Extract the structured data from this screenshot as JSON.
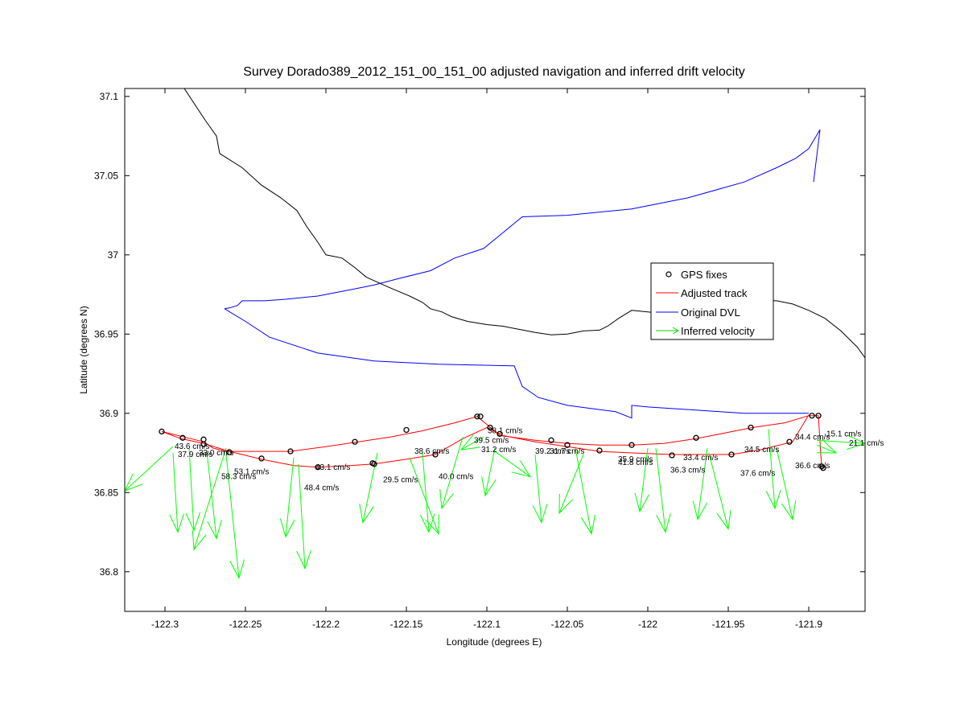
{
  "chart_data": {
    "type": "line",
    "title": "Survey Dorado389_2012_151_00_151_00 adjusted navigation and inferred drift velocity",
    "xlabel": "Longitude (degrees E)",
    "ylabel": "Latitude (degrees N)",
    "xlim": [
      -122.325,
      -121.865
    ],
    "ylim": [
      36.775,
      37.105
    ],
    "xticks": [
      -122.3,
      -122.25,
      -122.2,
      -122.15,
      -122.1,
      -122.05,
      -122.0,
      -121.95,
      -121.9
    ],
    "xtick_labels": [
      "-122.3",
      "-122.25",
      "-122.2",
      "-122.15",
      "-122.1",
      "-122.05",
      "-122",
      "-121.95",
      "-121.9"
    ],
    "yticks": [
      36.8,
      36.85,
      36.9,
      36.95,
      37.0,
      37.05,
      37.1
    ],
    "ytick_labels": [
      "36.8",
      "36.85",
      "36.9",
      "36.95",
      "37",
      "37.05",
      "37.1"
    ],
    "legend": {
      "position": "right",
      "entries": [
        "GPS fixes",
        "Adjusted track",
        "Original DVL",
        "Inferred velocity"
      ]
    },
    "colors": {
      "coastline": "#000000",
      "gps": "#000000",
      "adjusted": "#ff0000",
      "dvl": "#0000ff",
      "velocity": "#00ff00"
    },
    "coastline": [
      [
        -122.288,
        37.105
      ],
      [
        -122.275,
        37.085
      ],
      [
        -122.268,
        37.075
      ],
      [
        -122.266,
        37.064
      ],
      [
        -122.252,
        37.055
      ],
      [
        -122.24,
        37.044
      ],
      [
        -122.228,
        37.036
      ],
      [
        -122.218,
        37.028
      ],
      [
        -122.212,
        37.018
      ],
      [
        -122.205,
        37.008
      ],
      [
        -122.2,
        37.0
      ],
      [
        -122.19,
        36.998
      ],
      [
        -122.182,
        36.992
      ],
      [
        -122.175,
        36.986
      ],
      [
        -122.162,
        36.98
      ],
      [
        -122.148,
        36.974
      ],
      [
        -122.14,
        36.97
      ],
      [
        -122.135,
        36.966
      ],
      [
        -122.128,
        36.964
      ],
      [
        -122.122,
        36.961
      ],
      [
        -122.112,
        36.958
      ],
      [
        -122.1,
        36.956
      ],
      [
        -122.09,
        36.955
      ],
      [
        -122.08,
        36.953
      ],
      [
        -122.07,
        36.951
      ],
      [
        -122.06,
        36.9495
      ],
      [
        -122.05,
        36.95
      ],
      [
        -122.04,
        36.952
      ],
      [
        -122.03,
        36.9525
      ],
      [
        -122.025,
        36.955
      ],
      [
        -122.018,
        36.96
      ],
      [
        -122.01,
        36.965
      ],
      [
        -122.0,
        36.964
      ],
      [
        -121.99,
        36.963
      ],
      [
        -121.98,
        36.964
      ],
      [
        -121.97,
        36.965
      ],
      [
        -121.96,
        36.966
      ],
      [
        -121.95,
        36.967
      ],
      [
        -121.94,
        36.969
      ],
      [
        -121.93,
        36.971
      ],
      [
        -121.92,
        36.971
      ],
      [
        -121.91,
        36.969
      ],
      [
        -121.9,
        36.965
      ],
      [
        -121.89,
        36.96
      ],
      [
        -121.88,
        36.952
      ],
      [
        -121.87,
        36.942
      ],
      [
        -121.865,
        36.935
      ]
    ],
    "original_dvl": [
      [
        -122.263,
        36.966
      ],
      [
        -122.26,
        36.9665
      ],
      [
        -122.255,
        36.968
      ],
      [
        -122.252,
        36.971
      ],
      [
        -122.238,
        36.971
      ],
      [
        -122.225,
        36.972
      ],
      [
        -122.205,
        36.974
      ],
      [
        -122.185,
        36.978
      ],
      [
        -122.17,
        36.981
      ],
      [
        -122.155,
        36.985
      ],
      [
        -122.135,
        36.99
      ],
      [
        -122.12,
        36.998
      ],
      [
        -122.102,
        37.004
      ],
      [
        -122.09,
        37.014
      ],
      [
        -122.078,
        37.024
      ],
      [
        -122.05,
        37.025
      ],
      [
        -122.01,
        37.029
      ],
      [
        -121.975,
        37.036
      ],
      [
        -121.94,
        37.046
      ],
      [
        -121.92,
        37.055
      ],
      [
        -121.908,
        37.061
      ],
      [
        -121.9,
        37.067
      ],
      [
        -121.893,
        37.079
      ],
      [
        -121.897,
        37.046
      ]
    ],
    "original_dvl_return": [
      [
        -122.263,
        36.966
      ],
      [
        -122.25,
        36.958
      ],
      [
        -122.235,
        36.948
      ],
      [
        -122.205,
        36.938
      ],
      [
        -122.17,
        36.933
      ],
      [
        -122.13,
        36.931
      ],
      [
        -122.085,
        36.93
      ],
      [
        -122.083,
        36.93
      ],
      [
        -122.078,
        36.917
      ],
      [
        -122.068,
        36.91
      ],
      [
        -122.05,
        36.905
      ],
      [
        -122.02,
        36.901
      ],
      [
        -122.01,
        36.897
      ],
      [
        -122.01,
        36.905
      ],
      [
        -122.0,
        36.904
      ],
      [
        -121.97,
        36.902
      ],
      [
        -121.94,
        36.9
      ],
      [
        -121.9,
        36.9
      ]
    ],
    "adjusted_track": [
      [
        -122.302,
        36.8885
      ],
      [
        -122.288,
        36.885
      ],
      [
        -122.276,
        36.882
      ],
      [
        -122.27,
        36.878
      ],
      [
        -122.262,
        36.876
      ],
      [
        -122.248,
        36.876
      ],
      [
        -122.235,
        36.876
      ],
      [
        -122.222,
        36.876
      ],
      [
        -122.2,
        36.879
      ],
      [
        -122.18,
        36.882
      ],
      [
        -122.16,
        36.885
      ],
      [
        -122.14,
        36.889
      ],
      [
        -122.12,
        36.894
      ],
      [
        -122.106,
        36.898
      ],
      [
        -122.1,
        36.893
      ],
      [
        -122.092,
        36.886
      ],
      [
        -122.07,
        36.883
      ],
      [
        -122.05,
        36.881
      ],
      [
        -122.03,
        36.88
      ],
      [
        -122.01,
        36.88
      ],
      [
        -121.99,
        36.881
      ],
      [
        -121.97,
        36.884
      ],
      [
        -121.95,
        36.888
      ],
      [
        -121.935,
        36.891
      ],
      [
        -121.915,
        36.894
      ],
      [
        -121.9,
        36.8985
      ],
      [
        -121.894,
        36.8985
      ],
      [
        -121.892,
        36.866
      ]
    ],
    "adjusted_track_return": [
      [
        -122.302,
        36.8885
      ],
      [
        -122.29,
        36.884
      ],
      [
        -122.276,
        36.881
      ],
      [
        -122.26,
        36.876
      ],
      [
        -122.24,
        36.871
      ],
      [
        -122.22,
        36.867
      ],
      [
        -122.205,
        36.866
      ],
      [
        -122.185,
        36.867
      ],
      [
        -122.17,
        36.868
      ],
      [
        -122.15,
        36.871
      ],
      [
        -122.132,
        36.874
      ],
      [
        -122.115,
        36.884
      ],
      [
        -122.1,
        36.891
      ],
      [
        -122.09,
        36.886
      ],
      [
        -122.07,
        36.882
      ],
      [
        -122.05,
        36.879
      ],
      [
        -122.03,
        36.876
      ],
      [
        -122.01,
        36.875
      ],
      [
        -121.985,
        36.874
      ],
      [
        -121.965,
        36.874
      ],
      [
        -121.948,
        36.874
      ],
      [
        -121.93,
        36.877
      ],
      [
        -121.91,
        36.882
      ],
      [
        -121.9,
        36.899
      ]
    ],
    "gps_fixes": [
      [
        -122.302,
        36.8885
      ],
      [
        -122.289,
        36.8845
      ],
      [
        -122.276,
        36.8835
      ],
      [
        -122.276,
        36.8805
      ],
      [
        -122.26,
        36.8755
      ],
      [
        -122.24,
        36.8715
      ],
      [
        -122.222,
        36.876
      ],
      [
        -122.205,
        36.866
      ],
      [
        -122.182,
        36.882
      ],
      [
        -122.17,
        36.868
      ],
      [
        -122.171,
        36.8685
      ],
      [
        -122.15,
        36.8895
      ],
      [
        -122.132,
        36.874
      ],
      [
        -122.106,
        36.898
      ],
      [
        -122.104,
        36.898
      ],
      [
        -122.098,
        36.891
      ],
      [
        -122.092,
        36.887
      ],
      [
        -122.06,
        36.883
      ],
      [
        -122.05,
        36.88
      ],
      [
        -122.03,
        36.8765
      ],
      [
        -122.01,
        36.88
      ],
      [
        -121.985,
        36.8735
      ],
      [
        -121.97,
        36.8845
      ],
      [
        -121.948,
        36.874
      ],
      [
        -121.936,
        36.891
      ],
      [
        -121.912,
        36.882
      ],
      [
        -121.898,
        36.8985
      ],
      [
        -121.894,
        36.8985
      ],
      [
        -121.892,
        36.8665
      ],
      [
        -121.891,
        36.8655
      ]
    ],
    "inferred_velocity": [
      {
        "lon": -122.295,
        "lat": 36.879,
        "dlon": -0.03,
        "dlat": -0.028,
        "label": ""
      },
      {
        "lon": -122.295,
        "lat": 36.875,
        "dlon": 0.003,
        "dlat": -0.05,
        "label": "37.9 cm/s"
      },
      {
        "lon": -122.285,
        "lat": 36.878,
        "dlon": 0.003,
        "dlat": -0.052,
        "label": "43.6 cm/s"
      },
      {
        "lon": -122.274,
        "lat": 36.876,
        "dlon": 0.006,
        "dlat": -0.055,
        "label": "33.0 cm/s"
      },
      {
        "lon": -122.262,
        "lat": 36.878,
        "dlon": -0.02,
        "dlat": -0.064,
        "label": "53.1 cm/s"
      },
      {
        "lon": -122.262,
        "lat": 36.874,
        "dlon": 0.008,
        "dlat": -0.078,
        "label": "58.3 cm/s"
      },
      {
        "lon": -122.22,
        "lat": 36.872,
        "dlon": -0.005,
        "dlat": -0.05,
        "label": "43.1 cm/s"
      },
      {
        "lon": -122.217,
        "lat": 36.868,
        "dlon": 0.004,
        "dlat": -0.066,
        "label": "48.4 cm/s"
      },
      {
        "lon": -122.168,
        "lat": 36.875,
        "dlon": -0.009,
        "dlat": -0.044,
        "label": "29.5 cm/s"
      },
      {
        "lon": -122.14,
        "lat": 36.875,
        "dlon": 0.004,
        "dlat": -0.05,
        "label": "38.6 cm/s"
      },
      {
        "lon": -122.148,
        "lat": 36.872,
        "dlon": 0.018,
        "dlat": -0.048,
        "label": "40.0 cm/s"
      },
      {
        "lon": -122.115,
        "lat": 36.885,
        "dlon": -0.013,
        "dlat": -0.045,
        "label": "39.5 cm/s"
      },
      {
        "lon": -122.102,
        "lat": 36.885,
        "dlon": -0.014,
        "dlat": -0.008,
        "label": "38.1 cm/s"
      },
      {
        "lon": -122.095,
        "lat": 36.878,
        "dlon": -0.006,
        "dlat": -0.03,
        "label": "31.2 cm/s"
      },
      {
        "lon": -122.095,
        "lat": 36.876,
        "dlon": 0.022,
        "dlat": -0.016,
        "label": "39.2 cm/s"
      },
      {
        "lon": -122.07,
        "lat": 36.874,
        "dlon": 0.004,
        "dlat": -0.043,
        "label": "31.7 cm/s"
      },
      {
        "lon": -122.04,
        "lat": 36.874,
        "dlon": -0.015,
        "dlat": -0.037,
        "label": "35.9 cm/s"
      },
      {
        "lon": -122.045,
        "lat": 36.878,
        "dlon": 0.01,
        "dlat": -0.054,
        "label": "41.8 cm/s"
      },
      {
        "lon": -122.0,
        "lat": 36.878,
        "dlon": -0.005,
        "dlat": -0.04,
        "label": "36.3 cm/s"
      },
      {
        "lon": -121.995,
        "lat": 36.878,
        "dlon": 0.006,
        "dlat": -0.053,
        "label": "33.4 cm/s"
      },
      {
        "lon": -121.963,
        "lat": 36.878,
        "dlon": -0.006,
        "dlat": -0.045,
        "label": "37.6 cm/s"
      },
      {
        "lon": -121.962,
        "lat": 36.875,
        "dlon": 0.012,
        "dlat": -0.048,
        "label": "34.5 cm/s"
      },
      {
        "lon": -121.925,
        "lat": 36.89,
        "dlon": 0.004,
        "dlat": -0.05,
        "label": "36.6 cm/s"
      },
      {
        "lon": -121.92,
        "lat": 36.878,
        "dlon": 0.01,
        "dlat": -0.045,
        "label": "34.4 cm/s"
      },
      {
        "lon": -121.895,
        "lat": 36.88,
        "dlon": 0.012,
        "dlat": -0.005,
        "label": "15.1 cm/s"
      },
      {
        "lon": -121.895,
        "lat": 36.883,
        "dlon": 0.03,
        "dlat": -0.002,
        "label": "21.1 cm/s"
      }
    ],
    "velocity_labels": [
      {
        "lon": -122.294,
        "lat": 36.8795,
        "text": "43.6 cm/s"
      },
      {
        "lon": -122.292,
        "lat": 36.8745,
        "text": "37.9 cm/s"
      },
      {
        "lon": -122.279,
        "lat": 36.8755,
        "text": "33.0 cm/s"
      },
      {
        "lon": -122.257,
        "lat": 36.8635,
        "text": "53.1 cm/s"
      },
      {
        "lon": -122.265,
        "lat": 36.8605,
        "text": "58.3 cm/s"
      },
      {
        "lon": -122.2065,
        "lat": 36.8665,
        "text": "43.1 cm/s"
      },
      {
        "lon": -122.2135,
        "lat": 36.8535,
        "text": "48.4 cm/s"
      },
      {
        "lon": -122.1645,
        "lat": 36.8585,
        "text": "29.5 cm/s"
      },
      {
        "lon": -122.145,
        "lat": 36.8765,
        "text": "38.6 cm/s"
      },
      {
        "lon": -122.13,
        "lat": 36.8605,
        "text": "40.0 cm/s"
      },
      {
        "lon": -122.108,
        "lat": 36.8835,
        "text": "39.5 cm/s"
      },
      {
        "lon": -122.0995,
        "lat": 36.8895,
        "text": "38.1 cm/s"
      },
      {
        "lon": -122.1035,
        "lat": 36.8775,
        "text": "31.2 cm/s"
      },
      {
        "lon": -122.07,
        "lat": 36.8765,
        "text": "39.2 cm/s"
      },
      {
        "lon": -122.061,
        "lat": 36.8765,
        "text": "31.7 cm/s"
      },
      {
        "lon": -122.0185,
        "lat": 36.8715,
        "text": "35.9 cm/s"
      },
      {
        "lon": -122.0185,
        "lat": 36.8695,
        "text": "41.8 cm/s"
      },
      {
        "lon": -121.978,
        "lat": 36.8725,
        "text": "33.4 cm/s"
      },
      {
        "lon": -121.986,
        "lat": 36.8645,
        "text": "36.3 cm/s"
      },
      {
        "lon": -121.94,
        "lat": 36.8775,
        "text": "34.5 cm/s"
      },
      {
        "lon": -121.9425,
        "lat": 36.8625,
        "text": "37.6 cm/s"
      },
      {
        "lon": -121.9085,
        "lat": 36.8675,
        "text": "36.6 cm/s"
      },
      {
        "lon": -121.9085,
        "lat": 36.8855,
        "text": "34.4 cm/s"
      },
      {
        "lon": -121.889,
        "lat": 36.8875,
        "text": "15.1 cm/s"
      },
      {
        "lon": -121.875,
        "lat": 36.8815,
        "text": "21.1 cm/s"
      }
    ]
  }
}
